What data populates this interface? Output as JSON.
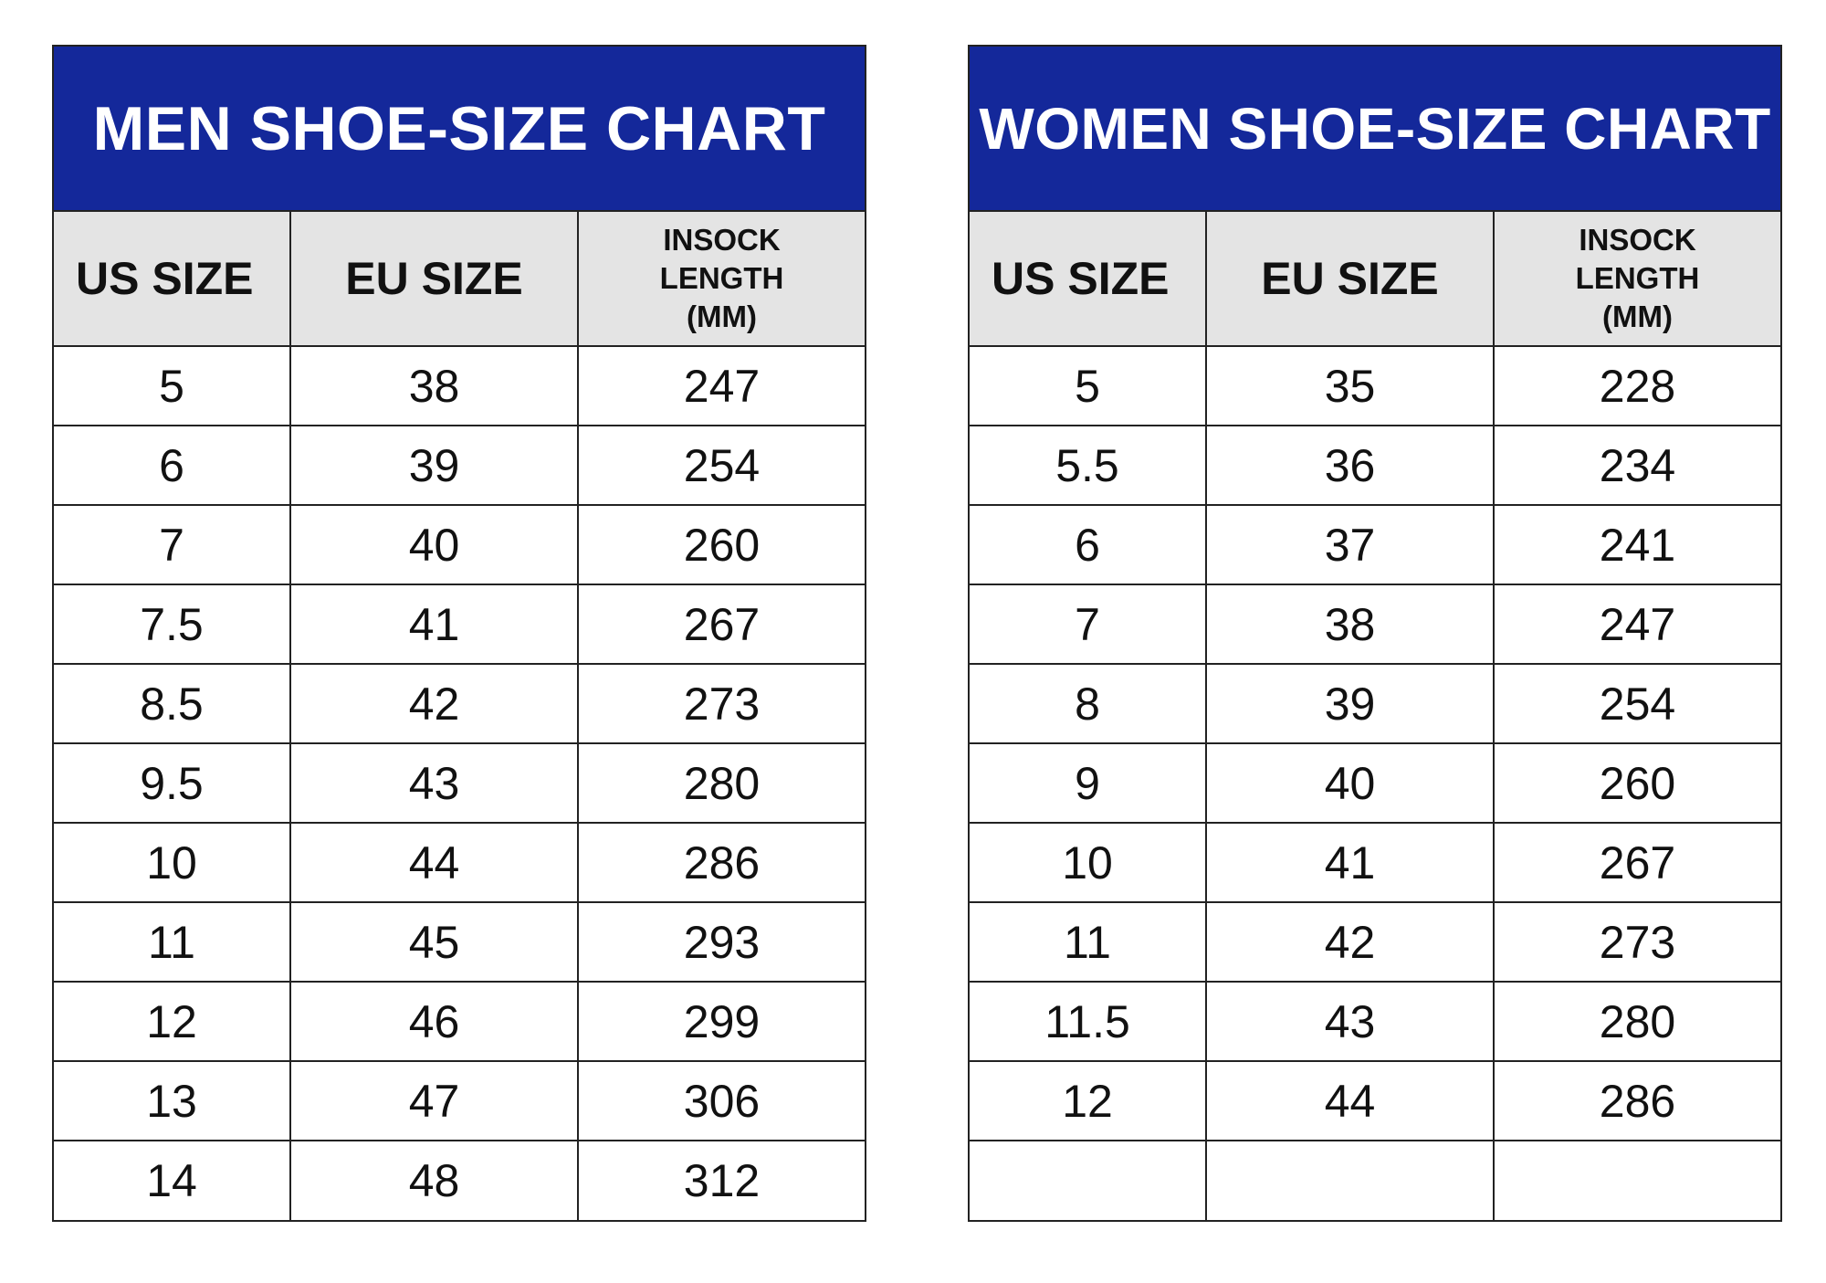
{
  "men_chart": {
    "title": "MEN SHOE-SIZE CHART",
    "headers": {
      "us_size": "US SIZE",
      "eu_size": "EU SIZE",
      "insock_line1": "INSOCK",
      "insock_line2": "LENGTH",
      "insock_line3": "(MM)"
    },
    "rows": [
      {
        "us": "5",
        "eu": "38",
        "mm": "247"
      },
      {
        "us": "6",
        "eu": "39",
        "mm": "254"
      },
      {
        "us": "7",
        "eu": "40",
        "mm": "260"
      },
      {
        "us": "7.5",
        "eu": "41",
        "mm": "267"
      },
      {
        "us": "8.5",
        "eu": "42",
        "mm": "273"
      },
      {
        "us": "9.5",
        "eu": "43",
        "mm": "280"
      },
      {
        "us": "10",
        "eu": "44",
        "mm": "286"
      },
      {
        "us": "11",
        "eu": "45",
        "mm": "293"
      },
      {
        "us": "12",
        "eu": "46",
        "mm": "299"
      },
      {
        "us": "13",
        "eu": "47",
        "mm": "306"
      },
      {
        "us": "14",
        "eu": "48",
        "mm": "312"
      }
    ]
  },
  "women_chart": {
    "title": "WOMEN SHOE-SIZE CHART",
    "headers": {
      "us_size": "US SIZE",
      "eu_size": "EU SIZE",
      "insock_line1": "INSOCK",
      "insock_line2": "LENGTH",
      "insock_line3": "(MM)"
    },
    "rows": [
      {
        "us": "5",
        "eu": "35",
        "mm": "228"
      },
      {
        "us": "5.5",
        "eu": "36",
        "mm": "234"
      },
      {
        "us": "6",
        "eu": "37",
        "mm": "241"
      },
      {
        "us": "7",
        "eu": "38",
        "mm": "247"
      },
      {
        "us": "8",
        "eu": "39",
        "mm": "254"
      },
      {
        "us": "9",
        "eu": "40",
        "mm": "260"
      },
      {
        "us": "10",
        "eu": "41",
        "mm": "267"
      },
      {
        "us": "11",
        "eu": "42",
        "mm": "273"
      },
      {
        "us": "11.5",
        "eu": "43",
        "mm": "280"
      },
      {
        "us": "12",
        "eu": "44",
        "mm": "286"
      },
      {
        "us": "",
        "eu": "",
        "mm": ""
      }
    ]
  }
}
